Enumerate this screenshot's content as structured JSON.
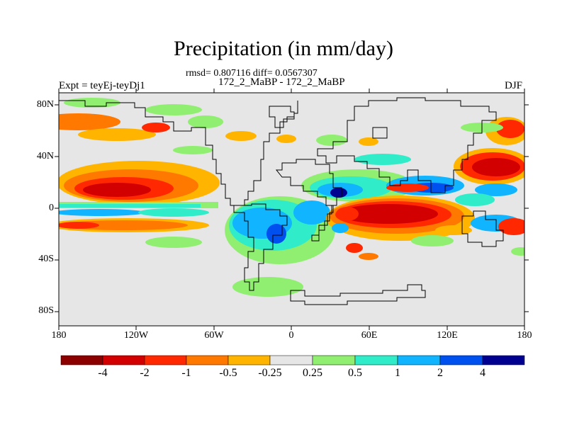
{
  "title": "Precipitation (in mm/day)",
  "stats_line": "rmsd= 0.807116 diff= 0.0567307",
  "runs_line": "172_2_MaBP - 172_2_MaBP",
  "left_label": "Expt = teyEj-teyDj1",
  "right_label": "DJF",
  "axes": {
    "lat_labels": [
      "80N",
      "40N",
      "0",
      "40S",
      "80S"
    ],
    "lat_values": [
      80,
      40,
      0,
      -40,
      -80
    ],
    "lon_labels": [
      "180",
      "120W",
      "60W",
      "0",
      "60E",
      "120E",
      "180"
    ],
    "lon_values": [
      -180,
      -120,
      -60,
      0,
      60,
      120,
      180
    ],
    "lat_range": [
      -90,
      90
    ],
    "lon_range": [
      -180,
      180
    ]
  },
  "colorbar": {
    "labels": [
      "-4",
      "-2",
      "-1",
      "-0.5",
      "-0.25",
      "0.25",
      "0.5",
      "1",
      "2",
      "4"
    ],
    "colors": [
      "#8c0000",
      "#d20000",
      "#ff2800",
      "#ff7800",
      "#ffb400",
      "#e6e6e6",
      "#90ee70",
      "#30ecc8",
      "#10b4ff",
      "#0050f0",
      "#000090"
    ]
  },
  "map": {
    "background_color": "#e6e6e6",
    "coastline_color": "#000000"
  }
}
